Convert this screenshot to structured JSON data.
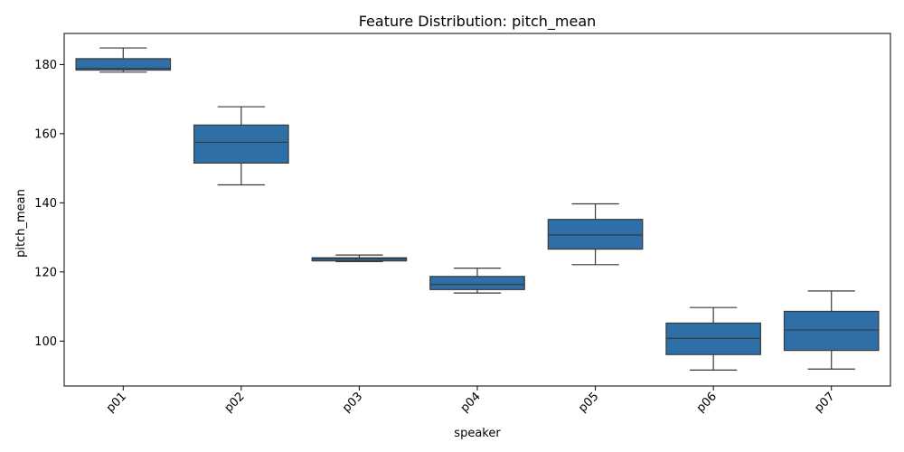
{
  "chart_data": {
    "type": "box",
    "title": "Feature Distribution: pitch_mean",
    "xlabel": "speaker",
    "ylabel": "pitch_mean",
    "ylim": [
      87,
      189
    ],
    "yticks": [
      100,
      120,
      140,
      160,
      180
    ],
    "grid": false,
    "box_color": "#2e6fa8",
    "line_color": "#3a3a3a",
    "categories": [
      "p01",
      "p02",
      "p03",
      "p04",
      "p05",
      "p06",
      "p07"
    ],
    "boxes": [
      {
        "category": "p01",
        "min": 177.8,
        "q1": 178.4,
        "median": 178.9,
        "q3": 181.7,
        "max": 184.8
      },
      {
        "category": "p02",
        "min": 145.2,
        "q1": 151.5,
        "median": 157.5,
        "q3": 162.5,
        "max": 167.8
      },
      {
        "category": "p03",
        "min": 123.0,
        "q1": 123.2,
        "median": 123.8,
        "q3": 124.1,
        "max": 124.9
      },
      {
        "category": "p04",
        "min": 113.9,
        "q1": 114.9,
        "median": 116.4,
        "q3": 118.7,
        "max": 121.1
      },
      {
        "category": "p05",
        "min": 122.1,
        "q1": 126.6,
        "median": 130.7,
        "q3": 135.2,
        "max": 139.7
      },
      {
        "category": "p06",
        "min": 91.6,
        "q1": 96.1,
        "median": 100.8,
        "q3": 105.2,
        "max": 109.7
      },
      {
        "category": "p07",
        "min": 91.9,
        "q1": 97.3,
        "median": 103.2,
        "q3": 108.6,
        "max": 114.5
      }
    ]
  }
}
